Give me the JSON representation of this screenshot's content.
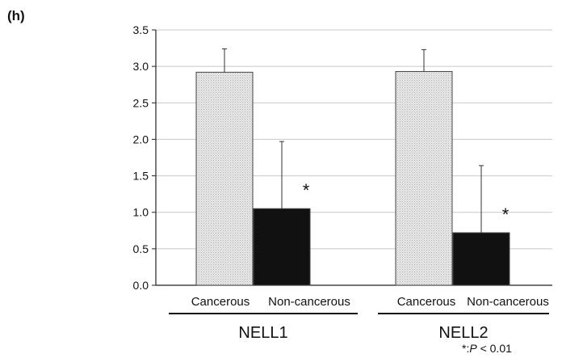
{
  "panel_label": "(h)",
  "footnote": {
    "prefix": "*:",
    "p": "P",
    "suffix": " < 0.01"
  },
  "chart_data": {
    "type": "bar",
    "title": "",
    "xlabel": "",
    "ylabel": "",
    "ylim": [
      0,
      3.5
    ],
    "yticks": [
      "0.0",
      "0.5",
      "1.0",
      "1.5",
      "2.0",
      "2.5",
      "3.0",
      "3.5"
    ],
    "grid": true,
    "groups": [
      {
        "name": "NELL1",
        "bars": [
          {
            "label": "Cancerous",
            "value": 2.92,
            "error": 0.32,
            "significance": ""
          },
          {
            "label": "Non-cancerous",
            "value": 1.05,
            "error": 0.92,
            "significance": "*"
          }
        ]
      },
      {
        "name": "NELL2",
        "bars": [
          {
            "label": "Cancerous",
            "value": 2.93,
            "error": 0.3,
            "significance": ""
          },
          {
            "label": "Non-cancerous",
            "value": 0.72,
            "error": 0.92,
            "significance": "*"
          }
        ]
      }
    ],
    "colors": {
      "cancerous": "#e6e6e6",
      "non_cancerous": "#111111",
      "grid": "#c8c8c8"
    }
  }
}
